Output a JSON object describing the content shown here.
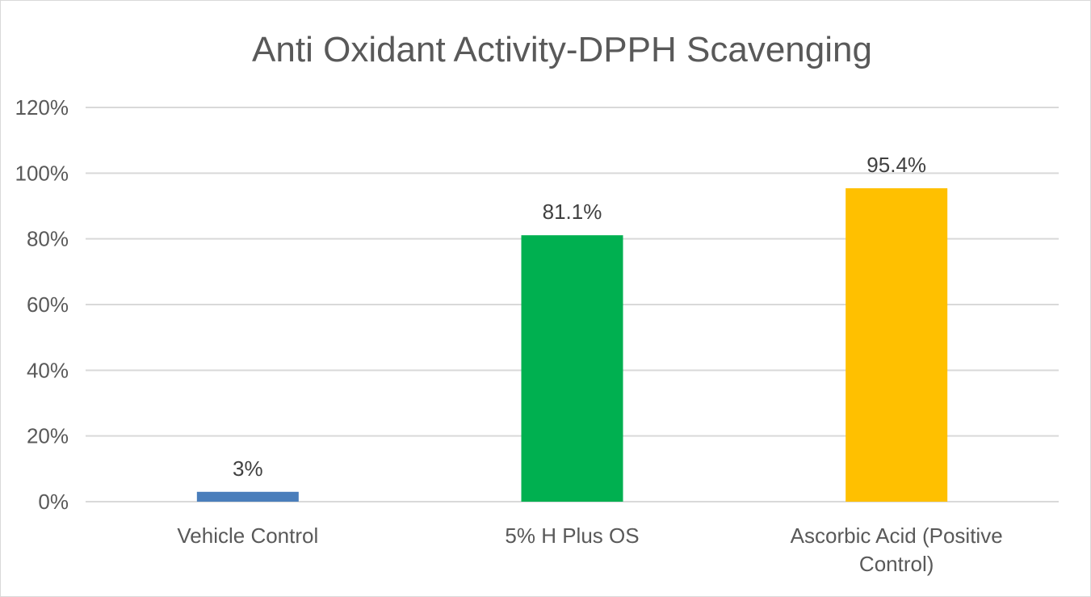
{
  "chart_data": {
    "type": "bar",
    "title": "Anti Oxidant Activity-DPPH Scavenging",
    "xlabel": "",
    "ylabel": "",
    "categories": [
      [
        "Vehicle Control"
      ],
      [
        "5% H Plus OS"
      ],
      [
        "Ascorbic Acid (Positive",
        "Control)"
      ]
    ],
    "values": [
      3,
      81.1,
      95.4
    ],
    "value_labels": [
      "3%",
      "81.1%",
      "95.4%"
    ],
    "bar_colors": [
      "#4a7ebb",
      "#00b050",
      "#ffc000"
    ],
    "ylim": [
      0,
      120
    ],
    "y_ticks": [
      0,
      20,
      40,
      60,
      80,
      100,
      120
    ],
    "y_tick_labels": [
      "0%",
      "20%",
      "40%",
      "60%",
      "80%",
      "100%",
      "120%"
    ],
    "grid": true,
    "legend": "none"
  }
}
